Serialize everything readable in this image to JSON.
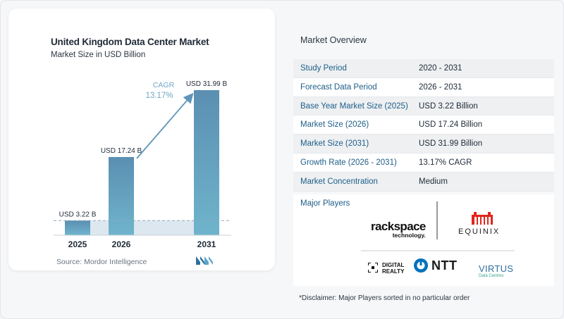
{
  "colors": {
    "bar": "#5f95b8",
    "bar_fill": "#6aa3c5",
    "accent_blue": "#1d5e88",
    "arrow": "#5f95b8",
    "cagr": "#6fa6c6",
    "shade": "#dde7ef"
  },
  "chart_data": {
    "type": "bar",
    "title": "United Kingdom Data Center Market",
    "subtitle": "Market Size in USD Billion",
    "categories": [
      "2025",
      "2026",
      "2031"
    ],
    "values": [
      3.22,
      17.24,
      31.99
    ],
    "data_labels": [
      "USD 3.22 B",
      "USD 17.24 B",
      "USD 31.99 B"
    ],
    "cagr_label": "CAGR",
    "cagr_value": "13.17%",
    "ylim": [
      0,
      34
    ],
    "grid": false
  },
  "source": "Source: Mordor Intelligence",
  "overview": {
    "title": "Market Overview",
    "rows": [
      {
        "label": "Study Period",
        "value": "2020 - 2031"
      },
      {
        "label": "Forecast Data Period",
        "value": "2026 - 2031"
      },
      {
        "label": "Base Year Market Size (2025)",
        "value": "USD 3.22 Billion"
      },
      {
        "label": "Market Size (2026)",
        "value": "USD 17.24 Billion"
      },
      {
        "label": "Market Size (2031)",
        "value": "USD 31.99 Billion"
      },
      {
        "label": "Growth Rate (2026 - 2031)",
        "value": "13.17% CAGR"
      },
      {
        "label": "Market Concentration",
        "value": "Medium"
      }
    ]
  },
  "players": {
    "title": "Major Players",
    "logos": {
      "rackspace": "rackspace",
      "rackspace_sub": "technology.",
      "equinix": "EQUINIX",
      "digital_realty_1": "DIGITAL",
      "digital_realty_2": "REALTY",
      "ntt": "NTT",
      "virtus": "VIRTUS",
      "virtus_sub": "Data Centres"
    }
  },
  "disclaimer": "*Disclaimer: Major Players sorted in no particular order"
}
